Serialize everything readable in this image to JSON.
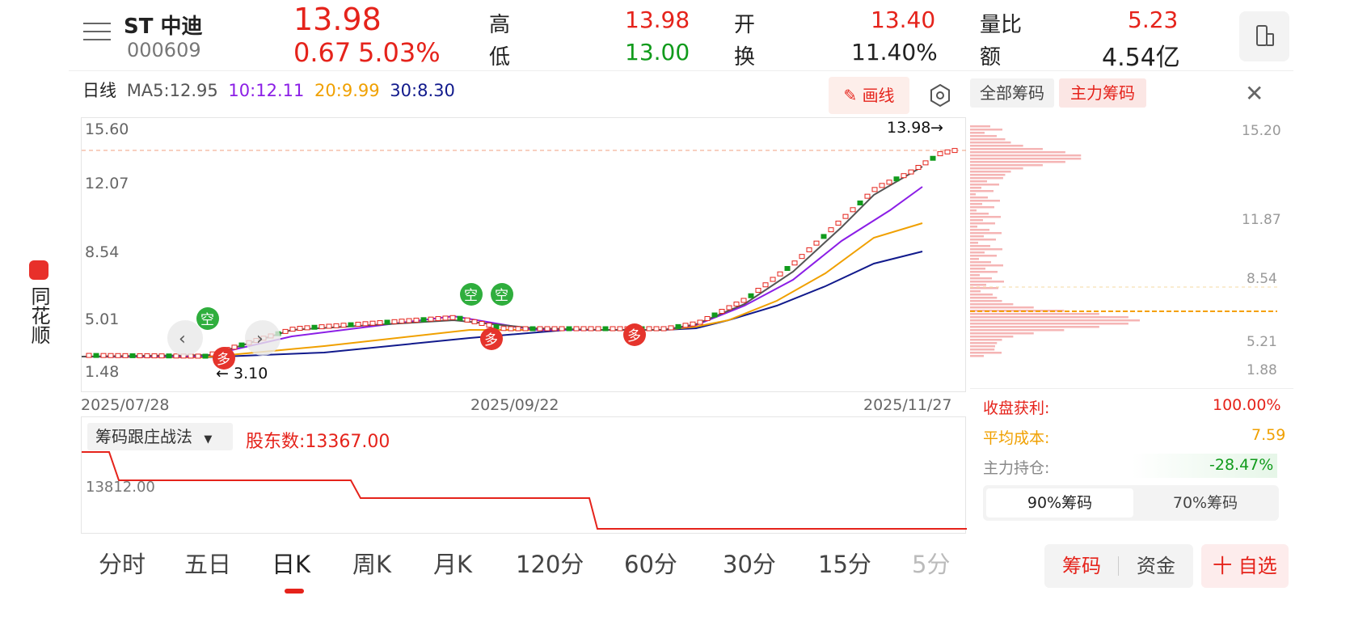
{
  "side_app": {
    "name": "同花顺"
  },
  "stock": {
    "name": "ST 中迪",
    "code": "000609",
    "price": "13.98",
    "change": "0.67",
    "change_pct": "5.03%"
  },
  "quote": {
    "high_label": "高",
    "high": "13.98",
    "low_label": "低",
    "low": "13.00",
    "open_label": "开",
    "open": "13.40",
    "turnover_label": "换",
    "turnover": "11.40%",
    "volume_ratio_label": "量比",
    "volume_ratio": "5.23",
    "amount_label": "额",
    "amount": "4.54亿"
  },
  "ma_legend": {
    "period": "日线",
    "ma5": "MA5:12.95",
    "ma10": "10:12.11",
    "ma20": "20:9.99",
    "ma30": "30:8.30"
  },
  "toolbar": {
    "draw_label": "画线"
  },
  "main_chart": {
    "y_ticks": [
      "15.60",
      "12.07",
      "8.54",
      "5.01",
      "1.48"
    ],
    "x_ticks": [
      "2025/07/28",
      "2025/09/22",
      "2025/11/27"
    ],
    "high_marker": "13.98",
    "low_marker": "3.10",
    "signal_labels": {
      "short": "空",
      "long": "多"
    }
  },
  "chips_panel": {
    "tab_all": "全部筹码",
    "tab_main": "主力筹码",
    "price_ticks": [
      "15.20",
      "11.87",
      "8.54",
      "5.21",
      "1.88"
    ],
    "profit_label": "收盘获利:",
    "profit_value": "100.00%",
    "avg_cost_label": "平均成本:",
    "avg_cost_value": "7.59",
    "main_position_label": "主力持仓:",
    "main_position_value": "-28.47%",
    "btn_90": "90%筹码",
    "btn_70": "70%筹码"
  },
  "indicator": {
    "selector": "筹码跟庄战法",
    "holders": "股东数:13367.00",
    "level_label": "13812.00"
  },
  "tabs": [
    "分时",
    "五日",
    "日K",
    "周K",
    "月K",
    "120分",
    "60分",
    "30分",
    "15分",
    "5分"
  ],
  "bottom_actions": {
    "chips": "筹码",
    "funds": "资金",
    "add": "十 自选"
  },
  "colors": {
    "up": "#e5231b",
    "down": "#119b1c",
    "ma5": "#555555",
    "ma10": "#8b1ee6",
    "ma20": "#f0a000",
    "ma30": "#111a8c"
  }
}
